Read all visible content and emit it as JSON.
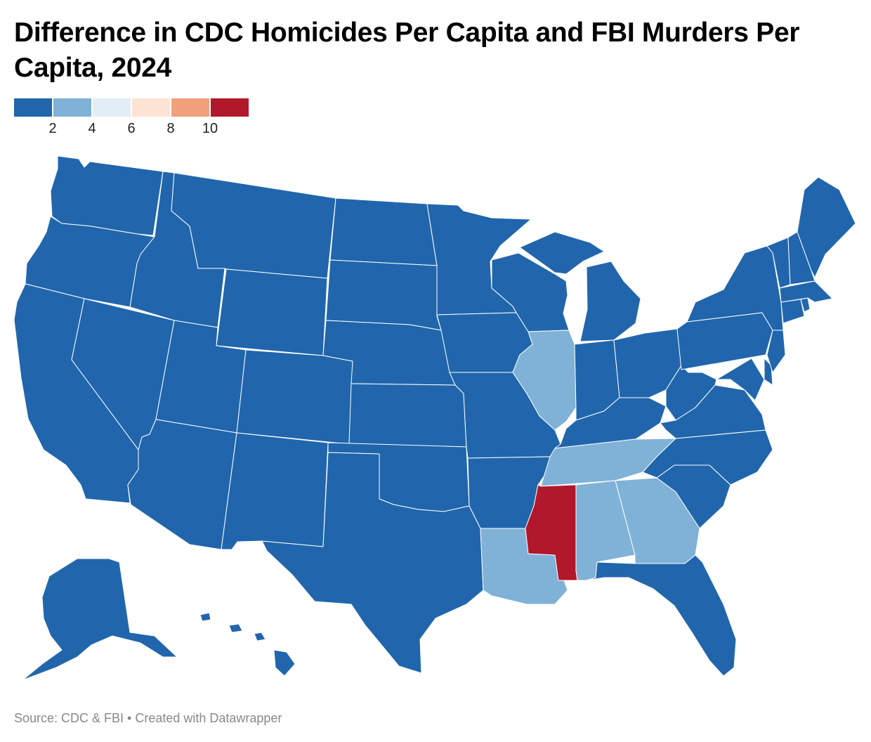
{
  "title": "Difference in CDC Homicides Per Capita and FBI Murders Per Capita, 2024",
  "legend": {
    "colors": [
      "#2166ac",
      "#7fb2d6",
      "#e2edf5",
      "#fde3d3",
      "#f2a07c",
      "#b2182b"
    ],
    "ticks": [
      "2",
      "4",
      "6",
      "8",
      "10"
    ]
  },
  "state_bins": {
    "mississippi": "#b2182b",
    "illinois": "#7fb2d6",
    "tennessee": "#7fb2d6",
    "alabama": "#7fb2d6",
    "georgia": "#7fb2d6",
    "louisiana": "#7fb2d6",
    "all_other_states": "#2166ac"
  },
  "footer": {
    "source": "Source: CDC & FBI • Created with Datawrapper"
  }
}
